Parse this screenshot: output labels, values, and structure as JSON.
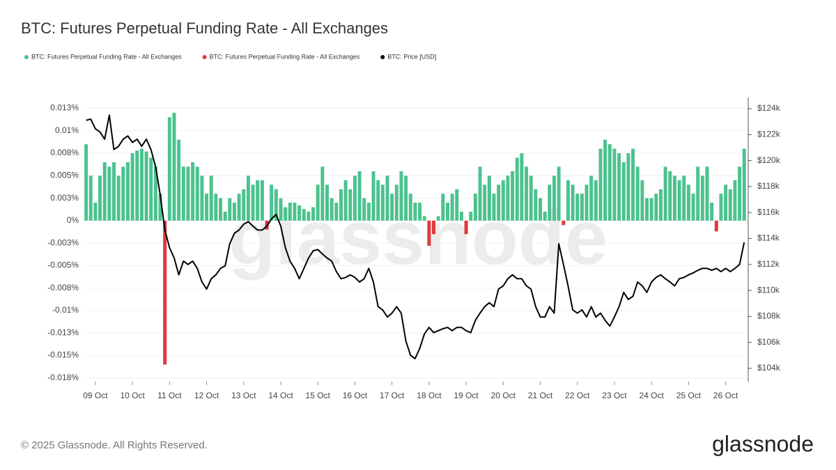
{
  "chart_data": {
    "type": "bar",
    "title": "BTC: Futures Perpetual Funding Rate - All Exchanges",
    "watermark": "glassnode",
    "footer": "© 2025 Glassnode. All Rights Reserved.",
    "logo": "glassnode",
    "grid": true,
    "legend": "top-left",
    "xlim": [
      8.72,
      26.59
    ],
    "xticks": [
      {
        "value": 9,
        "label": "09 Oct"
      },
      {
        "value": 10,
        "label": "10 Oct"
      },
      {
        "value": 11,
        "label": "11 Oct"
      },
      {
        "value": 12,
        "label": "12 Oct"
      },
      {
        "value": 13,
        "label": "13 Oct"
      },
      {
        "value": 14,
        "label": "14 Oct"
      },
      {
        "value": 15,
        "label": "15 Oct"
      },
      {
        "value": 16,
        "label": "16 Oct"
      },
      {
        "value": 17,
        "label": "17 Oct"
      },
      {
        "value": 18,
        "label": "18 Oct"
      },
      {
        "value": 19,
        "label": "19 Oct"
      },
      {
        "value": 20,
        "label": "20 Oct"
      },
      {
        "value": 21,
        "label": "21 Oct"
      },
      {
        "value": 22,
        "label": "22 Oct"
      },
      {
        "value": 23,
        "label": "23 Oct"
      },
      {
        "value": 24,
        "label": "24 Oct"
      },
      {
        "value": 25,
        "label": "25 Oct"
      },
      {
        "value": 26,
        "label": "26 Oct"
      }
    ],
    "ylim": [
      -0.0179,
      0.0137
    ],
    "yticks": [
      {
        "value": 0.0125,
        "label": "0.013%"
      },
      {
        "value": 0.01,
        "label": "0.01%"
      },
      {
        "value": 0.0075,
        "label": "0.008%"
      },
      {
        "value": 0.005,
        "label": "0.005%"
      },
      {
        "value": 0.0025,
        "label": "0.003%"
      },
      {
        "value": 0,
        "label": "0%"
      },
      {
        "value": -0.0025,
        "label": "-0.003%"
      },
      {
        "value": -0.005,
        "label": "-0.005%"
      },
      {
        "value": -0.0075,
        "label": "-0.008%"
      },
      {
        "value": -0.01,
        "label": "-0.01%"
      },
      {
        "value": -0.0125,
        "label": "-0.013%"
      },
      {
        "value": -0.015,
        "label": "-0.015%"
      },
      {
        "value": -0.0175,
        "label": "-0.018%"
      }
    ],
    "y2lim": [
      102980,
      124860
    ],
    "y2ticks": [
      {
        "value": 104000,
        "label": "$104k"
      },
      {
        "value": 106000,
        "label": "$106k"
      },
      {
        "value": 108000,
        "label": "$108k"
      },
      {
        "value": 110000,
        "label": "$110k"
      },
      {
        "value": 112000,
        "label": "$112k"
      },
      {
        "value": 114000,
        "label": "$114k"
      },
      {
        "value": 116000,
        "label": "$116k"
      },
      {
        "value": 118000,
        "label": "$118k"
      },
      {
        "value": 120000,
        "label": "$120k"
      },
      {
        "value": 122000,
        "label": "$122k"
      },
      {
        "value": 124000,
        "label": "$124k"
      }
    ],
    "x": [
      8.75,
      8.875,
      9,
      9.125,
      9.25,
      9.375,
      9.5,
      9.625,
      9.75,
      9.875,
      10,
      10.125,
      10.25,
      10.375,
      10.5,
      10.625,
      10.75,
      10.875,
      11,
      11.125,
      11.25,
      11.375,
      11.5,
      11.625,
      11.75,
      11.875,
      12,
      12.125,
      12.25,
      12.375,
      12.5,
      12.625,
      12.75,
      12.875,
      13,
      13.125,
      13.25,
      13.375,
      13.5,
      13.625,
      13.75,
      13.875,
      14,
      14.125,
      14.25,
      14.375,
      14.5,
      14.625,
      14.75,
      14.875,
      15,
      15.125,
      15.25,
      15.375,
      15.5,
      15.625,
      15.75,
      15.875,
      16,
      16.125,
      16.25,
      16.375,
      16.5,
      16.625,
      16.75,
      16.875,
      17,
      17.125,
      17.25,
      17.375,
      17.5,
      17.625,
      17.75,
      17.875,
      18,
      18.125,
      18.25,
      18.375,
      18.5,
      18.625,
      18.75,
      18.875,
      19,
      19.125,
      19.25,
      19.375,
      19.5,
      19.625,
      19.75,
      19.875,
      20,
      20.125,
      20.25,
      20.375,
      20.5,
      20.625,
      20.75,
      20.875,
      21,
      21.125,
      21.25,
      21.375,
      21.5,
      21.625,
      21.75,
      21.875,
      22,
      22.125,
      22.25,
      22.375,
      22.5,
      22.625,
      22.75,
      22.875,
      23,
      23.125,
      23.25,
      23.375,
      23.5,
      23.625,
      23.75,
      23.875,
      24,
      24.125,
      24.25,
      24.375,
      24.5,
      24.625,
      24.75,
      24.875,
      25,
      25.125,
      25.25,
      25.375,
      25.5,
      25.625,
      25.75,
      25.875,
      26,
      26.125,
      26.25,
      26.375,
      26.5
    ],
    "series": [
      {
        "name": "BTC: Futures Perpetual Funding Rate - All Exchanges",
        "color": "#4cc28f",
        "values": [
          0.0085,
          0.005,
          0.002,
          0.005,
          0.0065,
          0.006,
          0.0065,
          0.005,
          0.006,
          0.0065,
          0.0075,
          0.0078,
          0.008,
          0.0077,
          0.007,
          0.006,
          0.003,
          null,
          0.0115,
          0.012,
          0.009,
          0.006,
          0.006,
          0.0065,
          0.006,
          0.005,
          0.003,
          0.005,
          0.003,
          0.0025,
          0.001,
          0.0025,
          0.002,
          0.003,
          0.0035,
          0.005,
          0.004,
          0.0045,
          0.0045,
          null,
          0.004,
          0.0035,
          0.0025,
          0.0015,
          0.002,
          0.002,
          0.0017,
          0.0013,
          0.001,
          0.0015,
          0.004,
          0.006,
          0.004,
          0.0025,
          0.002,
          0.0035,
          0.0045,
          0.0035,
          0.005,
          0.0055,
          0.0025,
          0.002,
          0.0055,
          0.0045,
          0.004,
          0.005,
          0.003,
          0.004,
          0.0055,
          0.005,
          0.003,
          0.002,
          0.002,
          0.0005,
          null,
          null,
          0.0005,
          0.003,
          0.002,
          0.003,
          0.0035,
          0.001,
          null,
          0.001,
          0.003,
          0.006,
          0.004,
          0.005,
          0.003,
          0.004,
          0.0045,
          0.005,
          0.0055,
          0.007,
          0.0075,
          0.006,
          0.005,
          0.0035,
          0.0025,
          0.001,
          0.004,
          0.005,
          0.006,
          null,
          0.0045,
          0.004,
          0.003,
          0.003,
          0.004,
          0.005,
          0.0045,
          0.008,
          0.009,
          0.0085,
          0.008,
          0.0075,
          0.0065,
          0.0075,
          0.008,
          0.006,
          0.0045,
          0.0025,
          0.0025,
          0.003,
          0.0035,
          0.006,
          0.0055,
          0.005,
          0.0045,
          0.005,
          0.004,
          0.003,
          0.006,
          0.005,
          0.006,
          0.002,
          null,
          0.003,
          0.004,
          0.0035,
          0.0045,
          0.006,
          0.008
        ]
      },
      {
        "name": "BTC: Futures Perpetual Funding Rate - All Exchanges",
        "color": "#e0393e",
        "values": [
          null,
          null,
          null,
          null,
          null,
          null,
          null,
          null,
          null,
          null,
          null,
          null,
          null,
          null,
          null,
          null,
          null,
          -0.016,
          null,
          null,
          null,
          null,
          null,
          null,
          null,
          null,
          null,
          null,
          null,
          null,
          null,
          null,
          null,
          null,
          null,
          null,
          null,
          null,
          null,
          -0.001,
          null,
          null,
          null,
          null,
          null,
          null,
          null,
          null,
          null,
          null,
          null,
          null,
          null,
          null,
          null,
          null,
          null,
          null,
          null,
          null,
          null,
          null,
          null,
          null,
          null,
          null,
          null,
          null,
          null,
          null,
          null,
          null,
          null,
          null,
          -0.0028,
          -0.0015,
          null,
          null,
          null,
          null,
          null,
          null,
          -0.0015,
          null,
          null,
          null,
          null,
          null,
          null,
          null,
          null,
          null,
          null,
          null,
          null,
          null,
          null,
          null,
          null,
          null,
          null,
          null,
          null,
          -0.0005,
          null,
          null,
          null,
          null,
          null,
          null,
          null,
          null,
          null,
          null,
          null,
          null,
          null,
          null,
          null,
          null,
          null,
          null,
          null,
          null,
          null,
          null,
          null,
          null,
          null,
          null,
          null,
          null,
          null,
          null,
          null,
          null,
          -0.0012,
          null,
          null,
          null,
          null,
          null,
          null
        ]
      },
      {
        "name": "BTC: Price [USD]",
        "color": "#000000",
        "type": "line",
        "axis": "y2",
        "values": [
          123100,
          123200,
          122450,
          122200,
          121650,
          123500,
          120850,
          121100,
          121650,
          121900,
          121400,
          121650,
          121100,
          121650,
          120850,
          119500,
          117350,
          114650,
          113300,
          112500,
          111200,
          112250,
          112000,
          112250,
          111700,
          110650,
          110100,
          110900,
          111200,
          111700,
          111900,
          113600,
          114400,
          114650,
          115100,
          115300,
          114950,
          114650,
          114650,
          114950,
          115500,
          115850,
          114950,
          113300,
          112250,
          111700,
          110900,
          111700,
          112500,
          113050,
          113150,
          112800,
          112500,
          112250,
          111450,
          110900,
          111000,
          111200,
          111000,
          110650,
          110900,
          111700,
          110650,
          108750,
          108500,
          107950,
          108250,
          108750,
          108250,
          106100,
          105000,
          104750,
          105550,
          106650,
          107150,
          106750,
          106900,
          107050,
          107150,
          106900,
          107150,
          107150,
          106900,
          106750,
          107700,
          108250,
          108750,
          109050,
          108750,
          110100,
          110350,
          110900,
          111200,
          110900,
          110900,
          110350,
          110100,
          108750,
          107950,
          107950,
          108750,
          108250,
          113600,
          112000,
          110350,
          108500,
          108250,
          108500,
          107950,
          108750,
          107950,
          108250,
          107700,
          107250,
          107950,
          108750,
          109850,
          109300,
          109550,
          110650,
          110350,
          109850,
          110650,
          111000,
          111200,
          110900,
          110650,
          110350,
          110900,
          111000,
          111200,
          111350,
          111550,
          111700,
          111700,
          111550,
          111700,
          111450,
          111700,
          111450,
          111700,
          112000,
          113700
        ]
      }
    ]
  }
}
